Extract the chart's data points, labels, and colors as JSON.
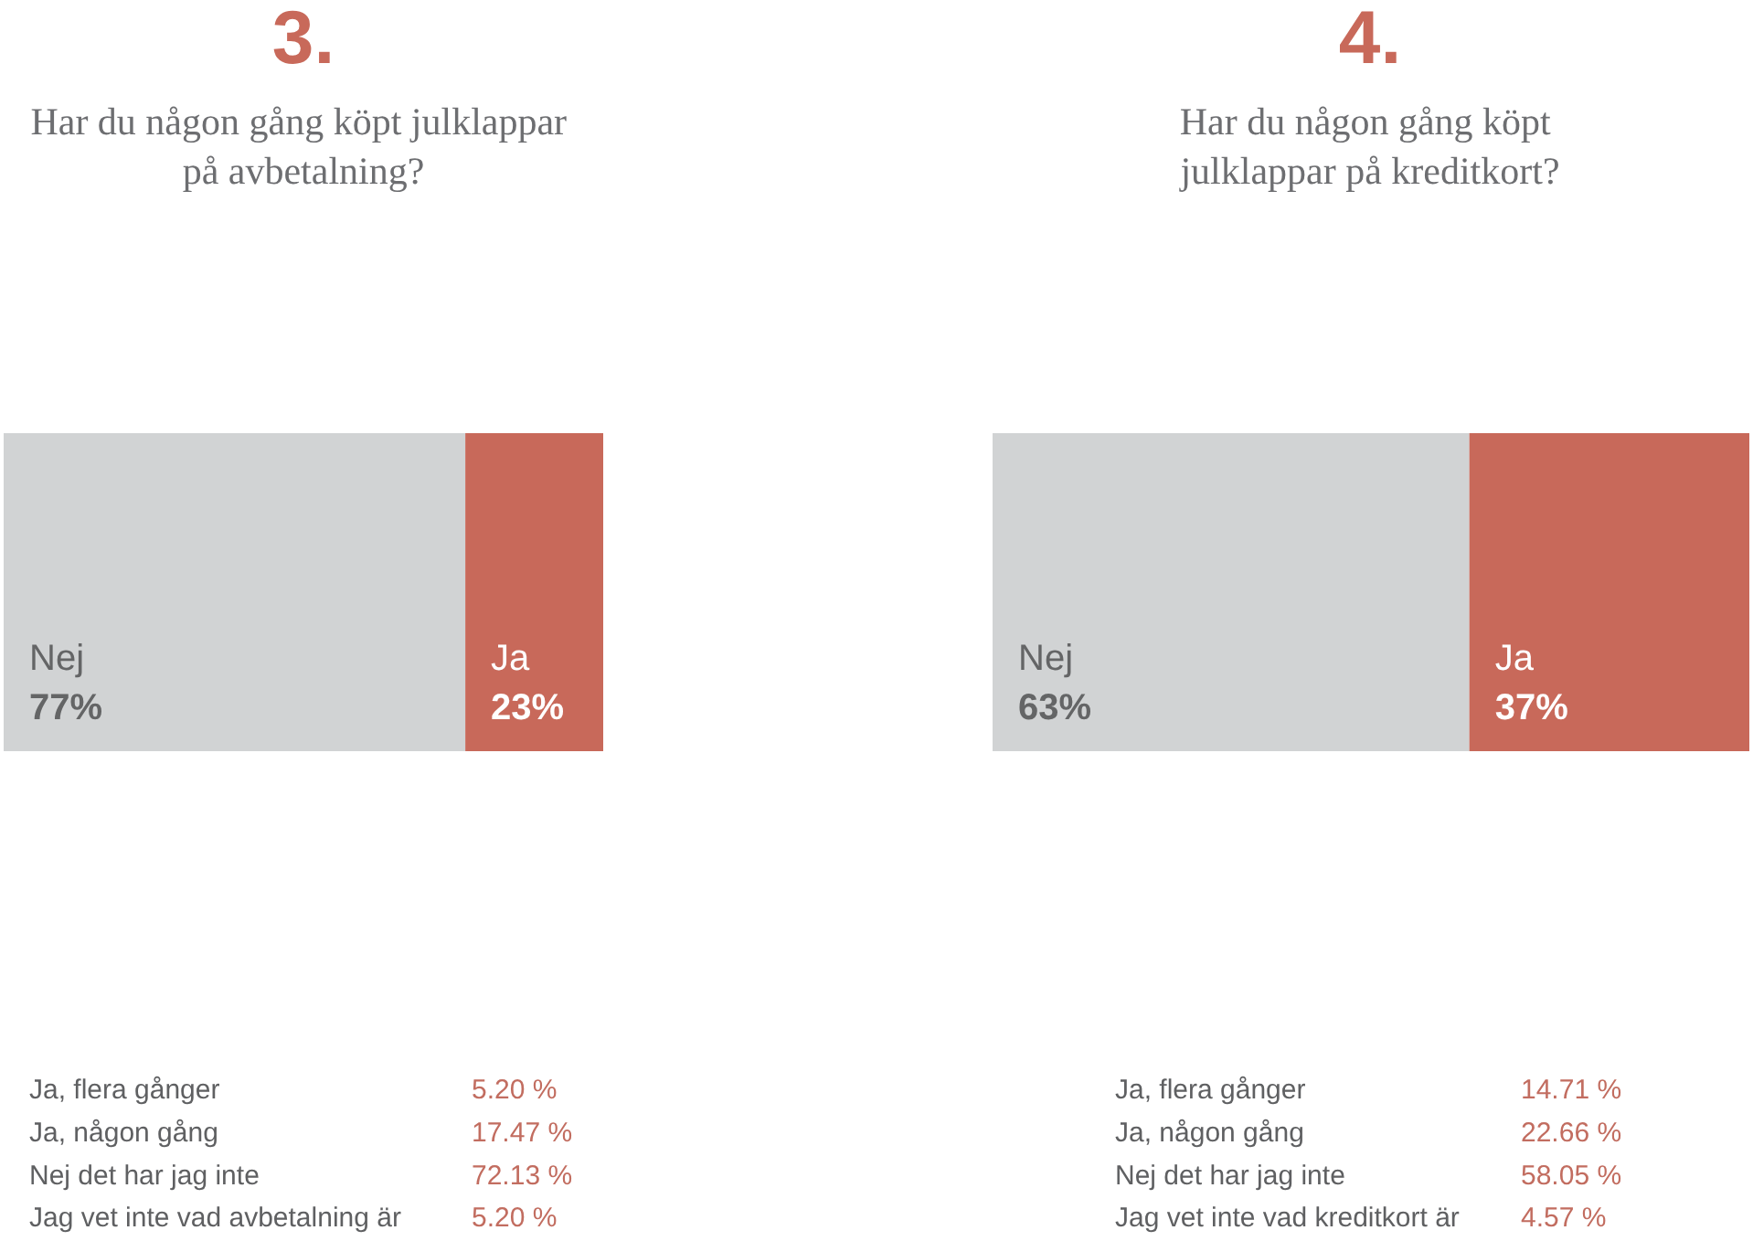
{
  "chart_data": [
    {
      "type": "bar",
      "orientation": "horizontal",
      "stacked": true,
      "title": "3.",
      "subtitle": "Har du någon gång köpt julklappar på avbetalning?",
      "categories": [
        null
      ],
      "tick_labels": false,
      "series": [
        {
          "name": "Nej",
          "color": "#d1d3d4",
          "values": [
            77
          ],
          "value_labels": [
            "77%"
          ]
        },
        {
          "name": "Ja",
          "color": "#c8695a",
          "values": [
            23
          ],
          "value_labels": [
            "23%"
          ]
        }
      ],
      "annotations": [
        "Ja, flera gånger",
        "5.20 %",
        "Ja, någon gång",
        "17.47 %",
        "Nej det har jag inte",
        "72.13 %",
        "Jag vet inte vad avbetalning är",
        "5.20 %"
      ]
    },
    {
      "type": "bar",
      "orientation": "horizontal",
      "stacked": true,
      "title": "4.",
      "subtitle": "Har du någon gång köpt julklappar på kreditkort?",
      "categories": [
        null
      ],
      "tick_labels": false,
      "series": [
        {
          "name": "Nej",
          "color": "#d1d3d4",
          "values": [
            63
          ],
          "value_labels": [
            "63%"
          ]
        },
        {
          "name": "Ja",
          "color": "#c8695a",
          "values": [
            37
          ],
          "value_labels": [
            "37%"
          ]
        }
      ],
      "annotations": [
        "Ja, flera gånger",
        "14.71 %",
        "Ja, någon gång",
        "22.66 %",
        "Nej det har jag inte",
        "58.05 %",
        "Jag vet inte vad kreditkort är",
        "4.57 %"
      ]
    }
  ]
}
